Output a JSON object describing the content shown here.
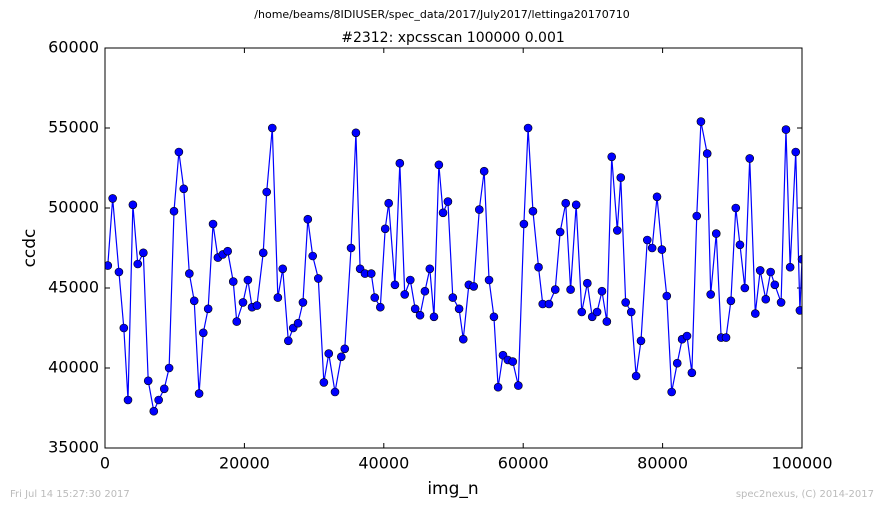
{
  "chart_data": {
    "type": "line",
    "suptitle": "/home/beams/8IDIUSER/spec_data/2017/July2017/lettinga20170710",
    "title": "#2312: xpcsscan 100000 0.001",
    "xlabel": "img_n",
    "ylabel": "ccdc",
    "footer_left": "Fri Jul 14 15:27:30 2017",
    "footer_right": "spec2nexus, (C) 2014-2017",
    "xlim": [
      0,
      100000
    ],
    "ylim": [
      35000,
      60000
    ],
    "xticks": [
      0,
      20000,
      40000,
      60000,
      80000,
      100000
    ],
    "yticks": [
      35000,
      40000,
      45000,
      50000,
      55000,
      60000
    ],
    "grid": false,
    "series": [
      {
        "name": "ccdc",
        "color": "#0000ff",
        "x": [
          400,
          1100,
          2000,
          2700,
          3300,
          4000,
          4700,
          5500,
          6200,
          7000,
          7700,
          8500,
          9200,
          9900,
          10600,
          11300,
          12100,
          12800,
          13500,
          14100,
          14800,
          15500,
          16200,
          16900,
          17600,
          18400,
          18900,
          19800,
          20500,
          21100,
          21800,
          22700,
          23200,
          24000,
          24800,
          25500,
          26300,
          27000,
          27700,
          28400,
          29100,
          29800,
          30600,
          31400,
          32100,
          33000,
          33900,
          34400,
          35300,
          36000,
          36600,
          37300,
          38200,
          38700,
          39500,
          40200,
          40700,
          41600,
          42300,
          43000,
          43800,
          44500,
          45200,
          45900,
          46600,
          47200,
          47900,
          48500,
          49200,
          49900,
          50800,
          51400,
          52200,
          52900,
          53700,
          54400,
          55100,
          55800,
          56400,
          57100,
          57800,
          58500,
          59300,
          60100,
          60700,
          61400,
          62200,
          62800,
          63700,
          64600,
          65300,
          66100,
          66800,
          67600,
          68400,
          69200,
          69900,
          70600,
          71300,
          72000,
          72700,
          73500,
          74000,
          74700,
          75500,
          76200,
          76900,
          77800,
          78500,
          79200,
          79900,
          80600,
          81300,
          82100,
          82800,
          83500,
          84200,
          84900,
          85500,
          86400,
          86900,
          87700,
          88400,
          89100,
          89800,
          90500,
          91100,
          91800,
          92500,
          93300,
          94000,
          94800,
          95500,
          96100,
          97000,
          97700,
          98300,
          99100,
          99700,
          100000
        ],
        "values": [
          46400,
          50600,
          46000,
          42500,
          38000,
          50200,
          46500,
          47200,
          39200,
          37300,
          38000,
          38700,
          40000,
          49800,
          53500,
          51200,
          45900,
          44200,
          38400,
          42200,
          43700,
          49000,
          46900,
          47100,
          47300,
          45400,
          42900,
          44100,
          45500,
          43800,
          43900,
          47200,
          51000,
          55000,
          44400,
          46200,
          41700,
          42500,
          42800,
          44100,
          49300,
          47000,
          45600,
          39100,
          40900,
          38500,
          40700,
          41200,
          47500,
          54700,
          46200,
          45900,
          45900,
          44400,
          43800,
          48700,
          50300,
          45200,
          52800,
          44600,
          45500,
          43700,
          43300,
          44800,
          46200,
          43200,
          52700,
          49700,
          50400,
          44400,
          43700,
          41800,
          45200,
          45100,
          49900,
          52300,
          45500,
          43200,
          38800,
          40800,
          40500,
          40400,
          38900,
          49000,
          55000,
          49800,
          46300,
          44000,
          44000,
          44900,
          48500,
          50300,
          44900,
          50200,
          43500,
          45300,
          43200,
          43500,
          44800,
          42900,
          53200,
          48600,
          51900,
          44100,
          43500,
          39500,
          41700,
          48000,
          47500,
          50700,
          47400,
          44500,
          38500,
          40300,
          41800,
          42000,
          39700,
          49500,
          55400,
          53400,
          44600,
          48400,
          41900,
          41900,
          44200,
          50000,
          47700,
          45000,
          53100,
          43400,
          46100,
          44300,
          46000,
          45200,
          44100,
          54900,
          46300,
          53500,
          43600,
          46800
        ]
      }
    ]
  }
}
